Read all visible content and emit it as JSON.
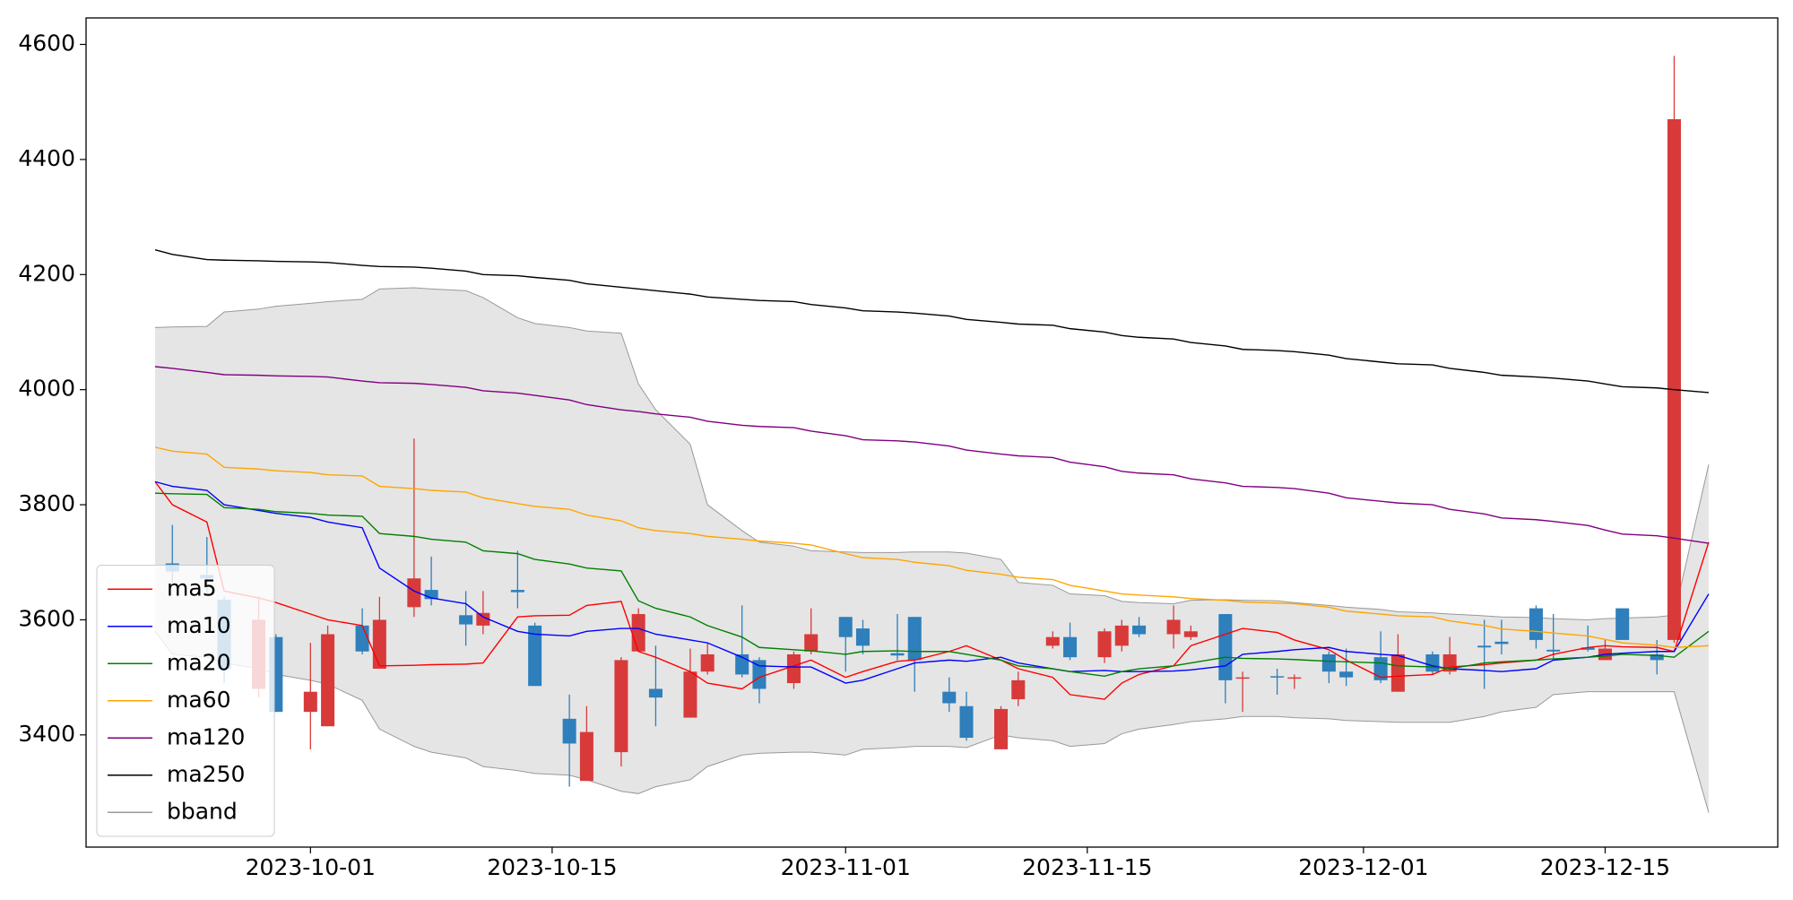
{
  "chart_data": {
    "type": "candlestick",
    "x": [
      "2023-09-22",
      "2023-09-23",
      "2023-09-25",
      "2023-09-26",
      "2023-09-28",
      "2023-09-29",
      "2023-10-01",
      "2023-10-02",
      "2023-10-04",
      "2023-10-05",
      "2023-10-07",
      "2023-10-08",
      "2023-10-10",
      "2023-10-11",
      "2023-10-13",
      "2023-10-14",
      "2023-10-16",
      "2023-10-17",
      "2023-10-19",
      "2023-10-20",
      "2023-10-21",
      "2023-10-23",
      "2023-10-24",
      "2023-10-26",
      "2023-10-27",
      "2023-10-29",
      "2023-10-30",
      "2023-11-01",
      "2023-11-02",
      "2023-11-04",
      "2023-11-05",
      "2023-11-07",
      "2023-11-08",
      "2023-11-10",
      "2023-11-11",
      "2023-11-13",
      "2023-11-14",
      "2023-11-16",
      "2023-11-17",
      "2023-11-18",
      "2023-11-20",
      "2023-11-21",
      "2023-11-23",
      "2023-11-24",
      "2023-11-26",
      "2023-11-27",
      "2023-11-29",
      "2023-11-30",
      "2023-12-02",
      "2023-12-03",
      "2023-12-05",
      "2023-12-06",
      "2023-12-08",
      "2023-12-09",
      "2023-12-11",
      "2023-12-12",
      "2023-12-14",
      "2023-12-15",
      "2023-12-16",
      "2023-12-18",
      "2023-12-19",
      "2023-12-21"
    ],
    "candles": {
      "up_color": "#d83a3a",
      "down_color": "#2e7fbb",
      "open": [
        null,
        3698,
        3678,
        3635,
        3480,
        3570,
        3440,
        3415,
        3590,
        3515,
        3622,
        3652,
        3608,
        3590,
        3652,
        3590,
        3428,
        3320,
        3370,
        3545,
        3480,
        3430,
        3510,
        3540,
        3530,
        3490,
        3545,
        3605,
        3585,
        3542,
        3605,
        3475,
        3450,
        3375,
        3462,
        3555,
        3570,
        3535,
        3555,
        3590,
        3575,
        3570,
        3610,
        3498,
        3502,
        3498,
        3540,
        3510,
        3535,
        3475,
        3540,
        3510,
        3555,
        3562,
        3620,
        3548,
        3552,
        3530,
        3620,
        3540,
        3565,
        null
      ],
      "high": [
        null,
        3765,
        3744,
        3640,
        3640,
        3575,
        3560,
        3590,
        3620,
        3640,
        3915,
        3710,
        3650,
        3650,
        3720,
        3595,
        3470,
        3450,
        3535,
        3620,
        3555,
        3550,
        3560,
        3625,
        3535,
        3545,
        3620,
        3605,
        3600,
        3610,
        3605,
        3500,
        3475,
        3450,
        3510,
        3580,
        3595,
        3585,
        3600,
        3605,
        3625,
        3590,
        3610,
        3510,
        3515,
        3505,
        3545,
        3550,
        3580,
        3575,
        3545,
        3570,
        3600,
        3600,
        3625,
        3610,
        3590,
        3565,
        3620,
        3565,
        4580,
        null
      ],
      "low": [
        null,
        3665,
        3645,
        3490,
        3465,
        3440,
        3375,
        3415,
        3540,
        3515,
        3605,
        3625,
        3555,
        3575,
        3620,
        3485,
        3310,
        3320,
        3345,
        3545,
        3415,
        3430,
        3505,
        3500,
        3455,
        3480,
        3540,
        3510,
        3540,
        3530,
        3475,
        3440,
        3390,
        3375,
        3450,
        3550,
        3530,
        3525,
        3545,
        3570,
        3550,
        3565,
        3455,
        3440,
        3470,
        3480,
        3490,
        3485,
        3490,
        3475,
        3505,
        3505,
        3480,
        3540,
        3550,
        3530,
        3545,
        3530,
        3565,
        3505,
        3560,
        null
      ],
      "close": [
        null,
        3684,
        3672,
        3515,
        3600,
        3440,
        3475,
        3575,
        3545,
        3600,
        3672,
        3636,
        3592,
        3612,
        3648,
        3485,
        3385,
        3405,
        3530,
        3610,
        3465,
        3510,
        3540,
        3505,
        3480,
        3540,
        3575,
        3570,
        3555,
        3538,
        3530,
        3455,
        3395,
        3445,
        3495,
        3570,
        3535,
        3580,
        3590,
        3575,
        3600,
        3580,
        3495,
        3500,
        3500,
        3500,
        3510,
        3500,
        3495,
        3540,
        3510,
        3540,
        3552,
        3558,
        3565,
        3545,
        3548,
        3550,
        3565,
        3530,
        4470,
        null
      ]
    },
    "series": [
      {
        "name": "ma5",
        "color": "#ff0000",
        "values": [
          3840,
          3800,
          3770,
          3650,
          3638,
          3630,
          3610,
          3600,
          3590,
          3520,
          3521,
          3522,
          3523,
          3525,
          3605,
          3607,
          3608,
          3625,
          3632,
          3545,
          3535,
          3510,
          3490,
          3480,
          3500,
          3520,
          3530,
          3500,
          3510,
          3528,
          3530,
          3545,
          3555,
          3530,
          3515,
          3500,
          3470,
          3462,
          3490,
          3505,
          3520,
          3555,
          3575,
          3585,
          3578,
          3565,
          3548,
          3530,
          3500,
          3502,
          3505,
          3518,
          3522,
          3525,
          3530,
          3540,
          3552,
          3555,
          3553,
          3552,
          3545,
          3735
        ]
      },
      {
        "name": "ma10",
        "color": "#0000ff",
        "values": [
          3840,
          3832,
          3825,
          3800,
          3790,
          3785,
          3778,
          3770,
          3760,
          3690,
          3650,
          3638,
          3628,
          3605,
          3580,
          3575,
          3572,
          3580,
          3585,
          3585,
          3575,
          3565,
          3560,
          3535,
          3520,
          3518,
          3518,
          3490,
          3495,
          3515,
          3525,
          3530,
          3528,
          3535,
          3525,
          3515,
          3510,
          3512,
          3510,
          3510,
          3511,
          3513,
          3520,
          3540,
          3545,
          3548,
          3552,
          3545,
          3540,
          3538,
          3520,
          3515,
          3512,
          3510,
          3515,
          3530,
          3535,
          3540,
          3542,
          3545,
          3545,
          3645
        ]
      },
      {
        "name": "ma20",
        "color": "#008000",
        "values": [
          3820,
          3819,
          3818,
          3795,
          3792,
          3788,
          3785,
          3782,
          3780,
          3750,
          3745,
          3740,
          3735,
          3720,
          3715,
          3705,
          3697,
          3690,
          3685,
          3633,
          3620,
          3605,
          3590,
          3570,
          3552,
          3548,
          3546,
          3540,
          3545,
          3546,
          3545,
          3545,
          3540,
          3530,
          3520,
          3515,
          3510,
          3502,
          3510,
          3515,
          3520,
          3525,
          3535,
          3533,
          3532,
          3531,
          3528,
          3527,
          3525,
          3520,
          3518,
          3515,
          3525,
          3527,
          3530,
          3532,
          3535,
          3537,
          3540,
          3538,
          3535,
          3580
        ]
      },
      {
        "name": "ma60",
        "color": "#ffa500",
        "values": [
          3900,
          3893,
          3888,
          3865,
          3862,
          3859,
          3856,
          3852,
          3850,
          3832,
          3828,
          3825,
          3822,
          3812,
          3802,
          3797,
          3792,
          3782,
          3772,
          3760,
          3755,
          3750,
          3745,
          3740,
          3737,
          3733,
          3730,
          3715,
          3708,
          3705,
          3700,
          3694,
          3686,
          3679,
          3674,
          3670,
          3660,
          3650,
          3645,
          3643,
          3640,
          3637,
          3634,
          3631,
          3629,
          3628,
          3622,
          3615,
          3610,
          3607,
          3605,
          3598,
          3590,
          3584,
          3580,
          3577,
          3572,
          3566,
          3560,
          3556,
          3552,
          3555
        ]
      },
      {
        "name": "ma120",
        "color": "#800080",
        "values": [
          4040,
          4037,
          4030,
          4026,
          4025,
          4024,
          4023,
          4022,
          4015,
          4012,
          4011,
          4009,
          4004,
          3998,
          3994,
          3990,
          3982,
          3974,
          3965,
          3962,
          3958,
          3952,
          3945,
          3938,
          3936,
          3934,
          3928,
          3920,
          3913,
          3911,
          3909,
          3902,
          3895,
          3888,
          3885,
          3882,
          3874,
          3866,
          3858,
          3855,
          3852,
          3845,
          3838,
          3832,
          3830,
          3828,
          3820,
          3812,
          3806,
          3803,
          3800,
          3792,
          3784,
          3777,
          3774,
          3771,
          3764,
          3756,
          3749,
          3746,
          3742,
          3733
        ]
      },
      {
        "name": "ma250",
        "color": "#000000",
        "values": [
          4243,
          4235,
          4226,
          4225,
          4224,
          4223,
          4222,
          4221,
          4216,
          4214,
          4213,
          4211,
          4206,
          4200,
          4198,
          4195,
          4190,
          4184,
          4178,
          4175,
          4172,
          4166,
          4161,
          4157,
          4155,
          4153,
          4148,
          4142,
          4137,
          4135,
          4133,
          4128,
          4122,
          4117,
          4114,
          4112,
          4106,
          4100,
          4094,
          4091,
          4088,
          4082,
          4076,
          4070,
          4068,
          4066,
          4060,
          4054,
          4048,
          4045,
          4043,
          4037,
          4030,
          4025,
          4022,
          4020,
          4015,
          4010,
          4005,
          4003,
          4000,
          3995
        ]
      }
    ],
    "band": {
      "name": "bband",
      "color": "#999999",
      "fill": "#e5e5e5",
      "upper": [
        4108,
        4109,
        4110,
        4135,
        4140,
        4145,
        4150,
        4153,
        4157,
        4175,
        4177,
        4175,
        4172,
        4160,
        4125,
        4115,
        4108,
        4102,
        4098,
        4010,
        3965,
        3905,
        3800,
        3755,
        3735,
        3728,
        3720,
        3718,
        3717,
        3717,
        3718,
        3718,
        3716,
        3705,
        3665,
        3660,
        3645,
        3642,
        3632,
        3630,
        3628,
        3634,
        3635,
        3634,
        3633,
        3630,
        3625,
        3622,
        3618,
        3614,
        3612,
        3610,
        3607,
        3605,
        3604,
        3602,
        3600,
        3602,
        3603,
        3605,
        3608,
        3870
      ],
      "lower": [
        3580,
        3540,
        3535,
        3525,
        3515,
        3505,
        3495,
        3488,
        3460,
        3410,
        3380,
        3370,
        3360,
        3345,
        3338,
        3333,
        3330,
        3322,
        3302,
        3298,
        3310,
        3322,
        3345,
        3365,
        3368,
        3370,
        3370,
        3365,
        3375,
        3378,
        3380,
        3380,
        3378,
        3400,
        3395,
        3390,
        3380,
        3385,
        3402,
        3410,
        3418,
        3423,
        3428,
        3432,
        3432,
        3430,
        3428,
        3425,
        3423,
        3422,
        3422,
        3422,
        3432,
        3440,
        3448,
        3470,
        3475,
        3475,
        3475,
        3475,
        3475,
        3265
      ]
    },
    "xlim": [
      "2023-09-18",
      "2023-12-25"
    ],
    "xticks": [
      "2023-10-01",
      "2023-10-15",
      "2023-11-01",
      "2023-11-15",
      "2023-12-01",
      "2023-12-15"
    ],
    "ylim": [
      3205,
      4646
    ],
    "yticks": [
      3400,
      3600,
      3800,
      4000,
      4200,
      4400,
      4600
    ],
    "grid": false,
    "legend": "lower left"
  }
}
